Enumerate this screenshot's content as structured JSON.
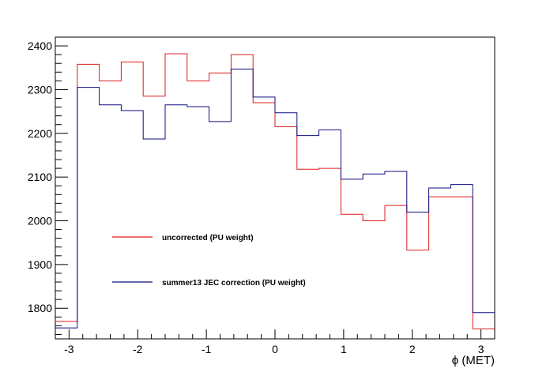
{
  "chart_data": {
    "type": "line",
    "style": "step-histogram",
    "title": "",
    "xlabel": "ϕ (MET)",
    "ylabel": "",
    "xlim": [
      -3.2,
      3.2
    ],
    "ylim": [
      1730,
      2420
    ],
    "x_ticks": [
      -3,
      -2,
      -1,
      0,
      1,
      2,
      3
    ],
    "x_tick_labels": [
      "-3",
      "-2",
      "-1",
      "0",
      "1",
      "2",
      "3"
    ],
    "y_ticks": [
      1800,
      1900,
      2000,
      2100,
      2200,
      2300,
      2400
    ],
    "y_tick_labels": [
      "1800",
      "1900",
      "2000",
      "2100",
      "2200",
      "2300",
      "2400"
    ],
    "bin_edges": [
      -3.2,
      -2.88,
      -2.56,
      -2.24,
      -1.92,
      -1.6,
      -1.28,
      -0.96,
      -0.64,
      -0.32,
      0.0,
      0.32,
      0.64,
      0.96,
      1.28,
      1.6,
      1.92,
      2.24,
      2.56,
      2.88,
      3.2
    ],
    "series": [
      {
        "name": "uncorrected (PU weight)",
        "color": "#dd1c1c",
        "values": [
          1770,
          2358,
          2320,
          2363,
          2285,
          2382,
          2320,
          2338,
          2380,
          2270,
          2215,
          2118,
          2120,
          2015,
          2000,
          2035,
          1933,
          2055,
          2055,
          1753
        ]
      },
      {
        "name": "summer13 JEC correction (PU weight)",
        "color": "#0e0e80",
        "values": [
          1755,
          2305,
          2265,
          2252,
          2187,
          2265,
          2261,
          2227,
          2347,
          2283,
          2247,
          2195,
          2208,
          2095,
          2107,
          2113,
          2020,
          2075,
          2083,
          1790
        ]
      }
    ],
    "legend_position": "left-lower, inside plot",
    "grid": false
  }
}
